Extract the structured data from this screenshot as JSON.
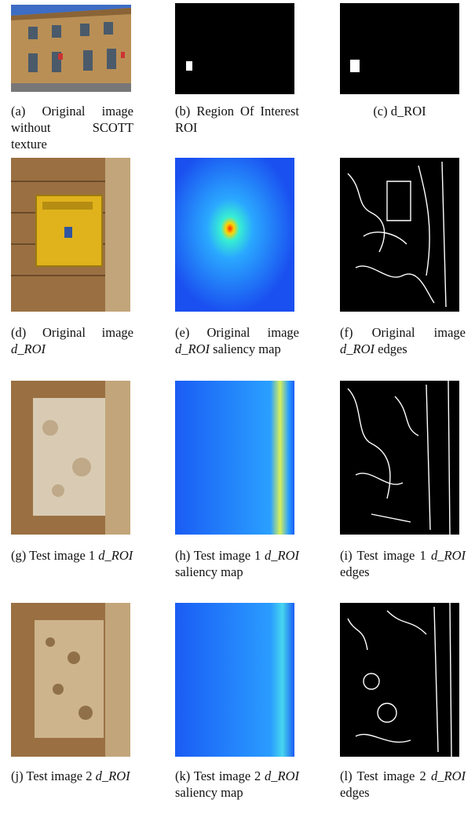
{
  "figure": {
    "panels": [
      {
        "id": "a",
        "caption": [
          "(a)",
          "Original image without SCOTT texture"
        ],
        "image": "building-facade-photo"
      },
      {
        "id": "b",
        "caption": [
          "(b)",
          "Region Of Interest ROI"
        ],
        "image": "roi-mask"
      },
      {
        "id": "c",
        "caption": [
          "(c)",
          "d_ROI"
        ],
        "image": "d-roi-mask"
      },
      {
        "id": "d",
        "caption": [
          "(d)",
          "Original image",
          "d_ROI"
        ],
        "image": "mailbox-photo"
      },
      {
        "id": "e",
        "caption": [
          "(e)",
          "Original image",
          "d_ROI",
          "saliency map"
        ],
        "image": "saliency-map"
      },
      {
        "id": "f",
        "caption": [
          "(f)",
          "Original image",
          "d_ROI",
          "edges"
        ],
        "image": "edge-map"
      },
      {
        "id": "g",
        "caption": [
          "(g)",
          "Test image 1",
          "d_ROI"
        ],
        "image": "test-image-1-photo"
      },
      {
        "id": "h",
        "caption": [
          "(h)",
          "Test image 1",
          "d_ROI",
          "saliency map"
        ],
        "image": "saliency-map"
      },
      {
        "id": "i",
        "caption": [
          "(i)",
          "Test image 1",
          "d_ROI",
          "edges"
        ],
        "image": "edge-map"
      },
      {
        "id": "j",
        "caption": [
          "(j)",
          "Test image 2",
          "d_ROI"
        ],
        "image": "test-image-2-photo"
      },
      {
        "id": "k",
        "caption": [
          "(k)",
          "Test image 2",
          "d_ROI",
          "saliency map"
        ],
        "image": "saliency-map"
      },
      {
        "id": "l",
        "caption": [
          "(l)",
          "Test image 2",
          "d_ROI",
          "edges"
        ],
        "image": "edge-map"
      }
    ]
  }
}
